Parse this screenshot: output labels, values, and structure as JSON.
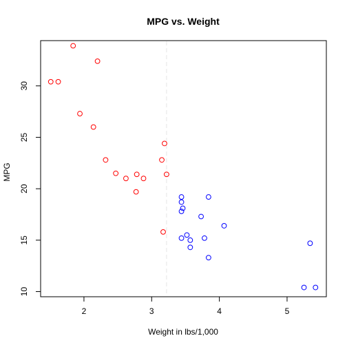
{
  "chart_data": {
    "type": "scatter",
    "title": "MPG vs. Weight",
    "xlabel": "Weight in lbs/1,000",
    "ylabel": "MPG",
    "xlim": [
      1.36,
      5.58
    ],
    "ylim": [
      9.5,
      34.4
    ],
    "x_ticks": [
      2,
      3,
      4,
      5
    ],
    "y_ticks": [
      10,
      15,
      20,
      25,
      30
    ],
    "grid": false,
    "legend": "none",
    "reference_line": {
      "orientation": "vertical",
      "x": 3.22,
      "style": "dashed",
      "color": "#e6e6e6"
    },
    "series": [
      {
        "color": "#ff0000",
        "marker": "open-circle",
        "points": [
          [
            1.51,
            30.4
          ],
          [
            1.62,
            30.4
          ],
          [
            1.84,
            33.9
          ],
          [
            1.94,
            27.3
          ],
          [
            2.14,
            26.0
          ],
          [
            2.2,
            32.4
          ],
          [
            2.32,
            22.8
          ],
          [
            2.47,
            21.5
          ],
          [
            2.62,
            21.0
          ],
          [
            2.77,
            19.7
          ],
          [
            2.78,
            21.4
          ],
          [
            2.88,
            21.0
          ],
          [
            3.15,
            22.8
          ],
          [
            3.17,
            15.8
          ],
          [
            3.19,
            24.4
          ],
          [
            3.22,
            21.4
          ]
        ]
      },
      {
        "color": "#0000ff",
        "marker": "open-circle",
        "points": [
          [
            3.44,
            18.7
          ],
          [
            3.44,
            19.2
          ],
          [
            3.44,
            17.8
          ],
          [
            3.46,
            18.1
          ],
          [
            3.44,
            15.2
          ],
          [
            3.52,
            15.5
          ],
          [
            3.57,
            15.0
          ],
          [
            3.57,
            14.3
          ],
          [
            3.73,
            17.3
          ],
          [
            3.78,
            15.2
          ],
          [
            3.84,
            19.2
          ],
          [
            3.84,
            13.3
          ],
          [
            4.07,
            16.4
          ],
          [
            5.25,
            10.4
          ],
          [
            5.34,
            14.7
          ],
          [
            5.42,
            10.4
          ]
        ]
      }
    ]
  }
}
